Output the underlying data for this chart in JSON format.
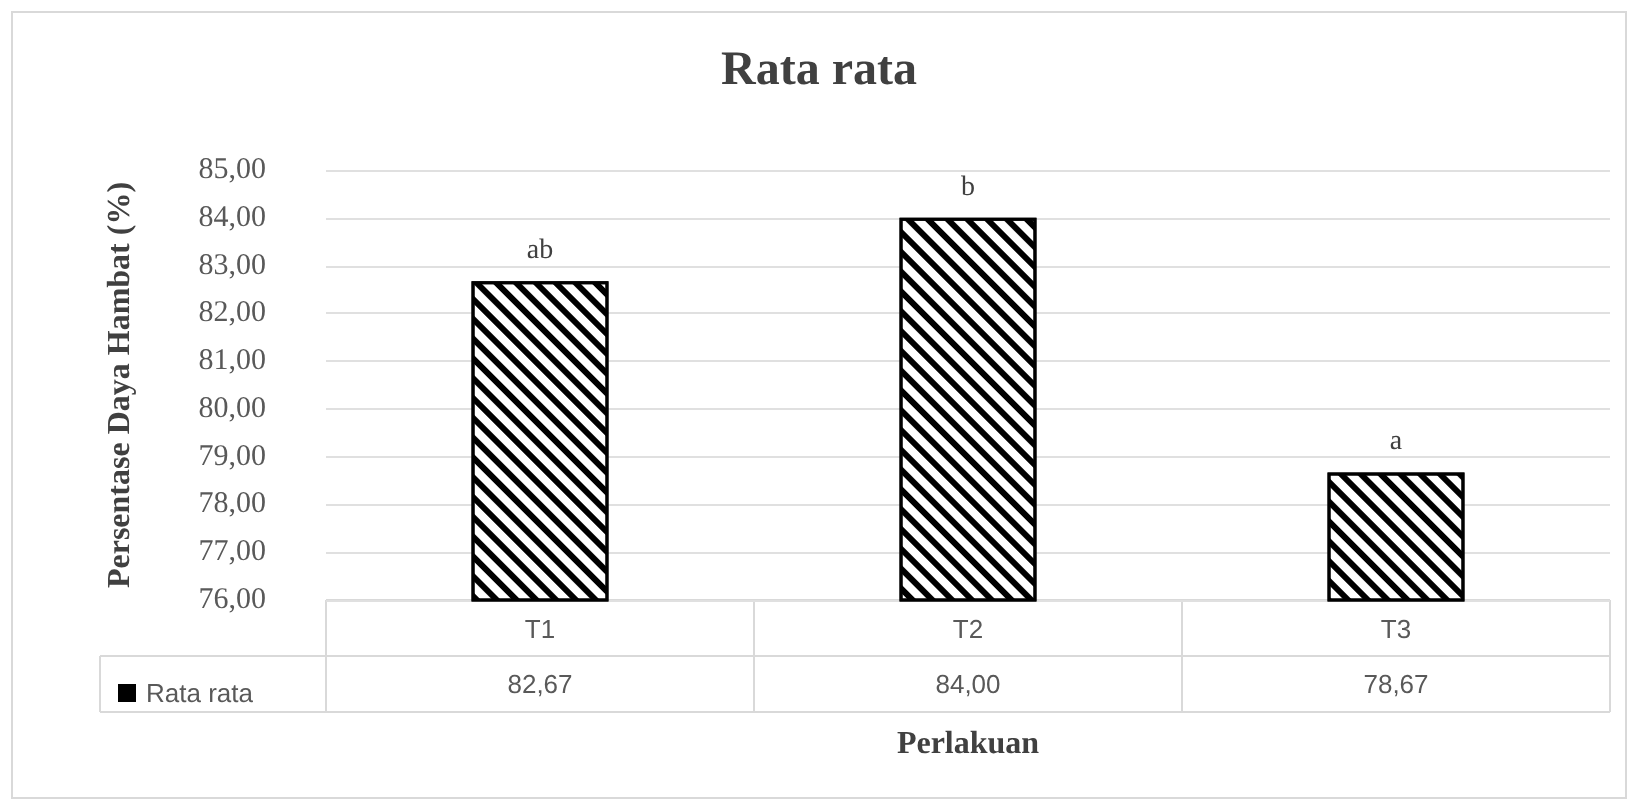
{
  "chart_data": {
    "type": "bar",
    "title": "Rata rata",
    "xlabel": "Perlakuan",
    "ylabel": "Persentase Daya Hambat (%)",
    "categories": [
      "T1",
      "T2",
      "T3"
    ],
    "series": [
      {
        "name": "Rata rata",
        "color": "#000000",
        "values": [
          82.67,
          84.0,
          78.67
        ]
      }
    ],
    "value_labels": [
      "82,67",
      "84,00",
      "78,67"
    ],
    "annotations": [
      {
        "text": "ab",
        "x": "T1",
        "y": 82.67
      },
      {
        "text": "b",
        "x": "T2",
        "y": 84.0
      },
      {
        "text": "a",
        "x": "T3",
        "y": 78.67
      }
    ],
    "ylim": [
      76,
      85
    ],
    "yticks": [
      {
        "value": 76,
        "label": "76,00"
      },
      {
        "value": 77,
        "label": "77,00"
      },
      {
        "value": 78,
        "label": "78,00"
      },
      {
        "value": 79,
        "label": "79,00"
      },
      {
        "value": 80,
        "label": "80,00"
      },
      {
        "value": 81,
        "label": "81,00"
      },
      {
        "value": 82,
        "label": "82,00"
      },
      {
        "value": 83,
        "label": "83,00"
      },
      {
        "value": 84,
        "label": "84,00"
      },
      {
        "value": 85,
        "label": "85,00"
      }
    ],
    "grid": "y",
    "legend": "bottom left"
  }
}
